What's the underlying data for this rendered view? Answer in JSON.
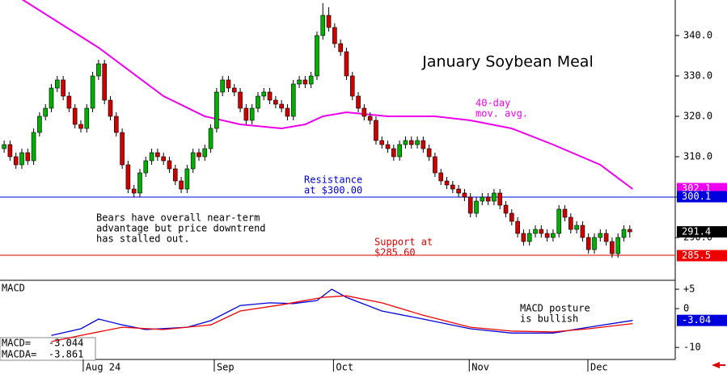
{
  "chart_data": [
    {
      "type": "candlestick",
      "title": "January Soybean Meal",
      "x": [
        0,
        1,
        2,
        3,
        4,
        5,
        6,
        7,
        8,
        9,
        10,
        11,
        12,
        13,
        14,
        15,
        16,
        17,
        18,
        19,
        20,
        21,
        22,
        23,
        24,
        25,
        26,
        27,
        28,
        29,
        30,
        31,
        32,
        33,
        34,
        35,
        36,
        37,
        38,
        39,
        40,
        41,
        42,
        43,
        44,
        45,
        46,
        47,
        48,
        49,
        50,
        51,
        52,
        53,
        54,
        55,
        56,
        57,
        58,
        59,
        60,
        61,
        62,
        63,
        64,
        65,
        66,
        67,
        68,
        69,
        70,
        71,
        72,
        73,
        74,
        75,
        76,
        77,
        78,
        79,
        80,
        81,
        82,
        83,
        84,
        85,
        86,
        87,
        88,
        89,
        90,
        91,
        92,
        93,
        94,
        95,
        96,
        97,
        98,
        99,
        100,
        101,
        102,
        103,
        104,
        105,
        106
      ],
      "open": [
        312,
        313,
        310,
        308,
        311,
        309,
        316,
        320,
        322,
        327,
        329,
        325,
        322,
        318,
        317,
        322,
        330,
        333,
        324,
        320,
        316,
        308,
        302,
        301,
        306,
        309,
        311,
        310,
        309,
        307,
        304,
        302,
        307,
        311,
        310,
        312,
        317,
        326,
        329,
        327,
        326,
        322,
        319,
        322,
        325,
        326,
        324,
        323,
        322,
        320,
        328,
        329,
        328,
        330,
        340,
        345,
        342,
        338,
        336,
        330,
        325,
        322,
        320,
        319,
        314,
        313,
        312,
        310,
        313,
        314,
        313,
        314,
        312,
        310,
        306,
        304,
        303,
        302,
        301,
        300,
        296,
        299,
        300,
        299,
        301,
        298,
        296,
        294,
        291,
        289,
        291,
        292,
        291,
        290,
        291,
        297,
        295,
        292,
        293,
        290,
        287,
        290,
        291,
        289,
        286,
        290,
        292
      ],
      "high": [
        314,
        314,
        311,
        312,
        312,
        317,
        321,
        323,
        328,
        330,
        330,
        326,
        323,
        319,
        323,
        331,
        334,
        334,
        325,
        321,
        317,
        309,
        303,
        307,
        310,
        312,
        312,
        311,
        310,
        308,
        305,
        308,
        312,
        312,
        313,
        318,
        327,
        330,
        330,
        328,
        327,
        323,
        323,
        326,
        327,
        327,
        325,
        324,
        323,
        329,
        330,
        330,
        331,
        341,
        348,
        347,
        343,
        339,
        337,
        331,
        326,
        323,
        321,
        320,
        315,
        314,
        313,
        314,
        315,
        315,
        315,
        315,
        313,
        311,
        307,
        305,
        304,
        303,
        302,
        301,
        300,
        301,
        301,
        302,
        302,
        299,
        297,
        295,
        292,
        292,
        293,
        293,
        292,
        292,
        298,
        298,
        296,
        294,
        294,
        291,
        291,
        292,
        292,
        290,
        291,
        293,
        293
      ],
      "low": [
        311,
        309,
        307,
        307,
        308,
        308,
        315,
        319,
        321,
        326,
        324,
        321,
        317,
        316,
        316,
        321,
        329,
        323,
        319,
        315,
        307,
        301,
        300,
        300,
        305,
        308,
        309,
        308,
        306,
        303,
        301,
        301,
        306,
        309,
        309,
        311,
        316,
        325,
        326,
        325,
        321,
        318,
        318,
        321,
        324,
        323,
        322,
        321,
        319,
        319,
        327,
        327,
        327,
        329,
        339,
        341,
        337,
        335,
        329,
        324,
        321,
        319,
        318,
        313,
        312,
        311,
        309,
        309,
        312,
        312,
        312,
        311,
        309,
        305,
        303,
        302,
        301,
        300,
        299,
        295,
        295,
        298,
        298,
        298,
        297,
        295,
        293,
        290,
        288,
        288,
        290,
        290,
        289,
        289,
        290,
        294,
        291,
        291,
        289,
        286,
        286,
        289,
        288,
        285,
        285,
        289,
        290
      ],
      "close": [
        313,
        310,
        308,
        311,
        309,
        316,
        320,
        322,
        327,
        329,
        325,
        322,
        318,
        317,
        322,
        330,
        333,
        324,
        320,
        316,
        308,
        302,
        301,
        306,
        309,
        311,
        310,
        309,
        307,
        304,
        302,
        307,
        311,
        310,
        312,
        317,
        326,
        329,
        327,
        326,
        322,
        319,
        322,
        325,
        326,
        324,
        323,
        322,
        320,
        328,
        329,
        328,
        330,
        340,
        345,
        342,
        338,
        336,
        330,
        325,
        322,
        320,
        319,
        314,
        313,
        312,
        310,
        313,
        314,
        313,
        314,
        312,
        310,
        306,
        304,
        303,
        302,
        301,
        300,
        296,
        299,
        300,
        299,
        301,
        298,
        296,
        294,
        291,
        289,
        291,
        292,
        291,
        290,
        291,
        297,
        295,
        292,
        293,
        290,
        287,
        290,
        291,
        289,
        286,
        290,
        292,
        291.4
      ],
      "up_color": "#00b000",
      "down_color": "#d00000",
      "xlim": [
        -0.7,
        113.7
      ],
      "ylim": [
        279.4,
        348.8
      ],
      "xticks": [
        {
          "value": 13.4,
          "label": "Aug 24"
        },
        {
          "value": 35.6,
          "label": "Sep"
        },
        {
          "value": 55.8,
          "label": "Oct"
        },
        {
          "value": 78.8,
          "label": "Nov"
        },
        {
          "value": 98.9,
          "label": "Dec"
        }
      ],
      "yticks": [
        {
          "value": 290,
          "label": "290.0"
        },
        {
          "value": 300,
          "label": "300.0"
        },
        {
          "value": 310,
          "label": "310.0"
        },
        {
          "value": 320,
          "label": "320.0"
        },
        {
          "value": 330,
          "label": "330.0"
        },
        {
          "value": 340,
          "label": "340.0"
        }
      ],
      "moving_average": {
        "name": [
          "40-day",
          "mov. avg."
        ],
        "color": "#ee00ee",
        "x": [
          3,
          16,
          27,
          34,
          40,
          47,
          51,
          54,
          58,
          65,
          73,
          79,
          86,
          93,
          101,
          106.5
        ],
        "values": [
          349,
          337,
          325,
          320,
          318,
          317,
          318,
          320,
          321,
          320,
          320,
          319,
          317,
          313,
          308,
          302
        ]
      },
      "levels": [
        {
          "value": 300,
          "color": "#0000dd",
          "label": [
            "Resistance",
            "at $300.00"
          ]
        },
        {
          "value": 285.6,
          "color": "#dd0000",
          "label": [
            "Support at",
            "$285.60"
          ]
        }
      ],
      "tags": [
        {
          "value": 302.1,
          "label": "302.1",
          "color": "#ee00ee"
        },
        {
          "value": 300.1,
          "label": "300.1",
          "color": "#0000dd"
        },
        {
          "value": 291.4,
          "label": "291.4",
          "color": "#000000"
        },
        {
          "value": 285.5,
          "label": "285.5",
          "color": "#ee0000"
        }
      ],
      "note": [
        "Bears have overall near-term",
        "advantage but price downtrend",
        "has stalled out."
      ]
    },
    {
      "type": "line",
      "title": "MACD",
      "ylim": [
        -13.1,
        7.3
      ],
      "yticks": [
        {
          "value": 5,
          "label": "+5"
        },
        0,
        -10
      ],
      "series": [
        {
          "name": "MACD",
          "color": "#0000dd",
          "x": [
            8,
            13,
            16,
            20,
            24,
            31,
            35,
            40,
            45,
            49,
            53,
            55.5,
            58,
            64,
            71,
            79,
            86,
            93,
            99,
            106.5
          ],
          "values": [
            -6.9,
            -5.2,
            -2.7,
            -4.2,
            -5.4,
            -4.8,
            -3.1,
            0.8,
            1.5,
            1.3,
            2.1,
            5,
            2.9,
            -0.6,
            -2.7,
            -5.2,
            -6.3,
            -6.3,
            -4.8,
            -3.044
          ]
        },
        {
          "name": "MACDA",
          "color": "#ee0000",
          "x": [
            8,
            13,
            20,
            27,
            35,
            40,
            47,
            54,
            58,
            64,
            71,
            79,
            86,
            93,
            99,
            106.5
          ],
          "values": [
            -8.5,
            -6.9,
            -4.8,
            -5.4,
            -4.2,
            -0.6,
            1.0,
            2.9,
            3.3,
            1.5,
            -1.7,
            -4.8,
            -5.8,
            -6.0,
            -5.2,
            -3.861
          ]
        }
      ],
      "readout": [
        {
          "label": "MACD=",
          "value": "-3.044"
        },
        {
          "label": "MACDA=",
          "value": "-3.861"
        }
      ],
      "tags": [
        {
          "value": -3.04,
          "label": "-3.04",
          "color": "#0000dd"
        }
      ],
      "note": [
        "MACD posture",
        "is bullish"
      ]
    }
  ]
}
